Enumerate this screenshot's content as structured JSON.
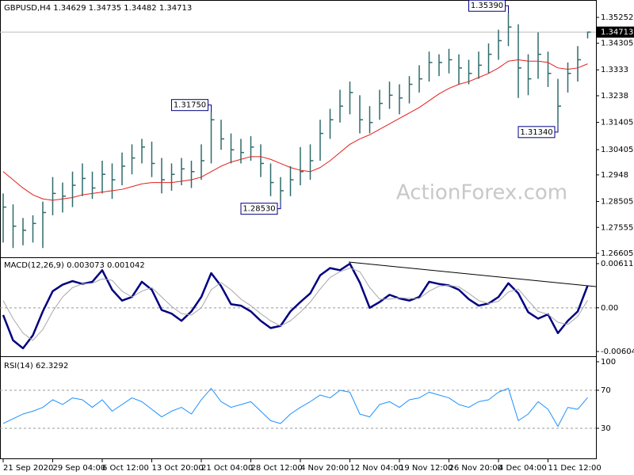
{
  "chart_data": [
    {
      "type": "ohlc",
      "title": "GBPUSD,H4 1.34629 1.34735 1.34482 1.34713",
      "watermark": "ActionForex.com",
      "color": "#2e6b6b",
      "close": [
        1.283,
        1.276,
        1.2745,
        1.277,
        1.281,
        1.288,
        1.287,
        1.291,
        1.2935,
        1.29,
        1.295,
        1.293,
        1.298,
        1.301,
        1.305,
        1.299,
        1.293,
        1.295,
        1.297,
        1.296,
        1.3,
        1.315,
        1.308,
        1.304,
        1.303,
        1.305,
        1.299,
        1.292,
        1.289,
        1.293,
        1.296,
        1.3,
        1.31,
        1.315,
        1.32,
        1.325,
        1.315,
        1.314,
        1.321,
        1.324,
        1.323,
        1.328,
        1.33,
        1.336,
        1.336,
        1.337,
        1.334,
        1.332,
        1.335,
        1.339,
        1.344,
        1.349,
        1.334,
        1.33,
        1.339,
        1.332,
        1.32,
        1.332,
        1.337,
        1.34713
      ],
      "high": [
        1.288,
        1.284,
        1.279,
        1.28,
        1.285,
        1.294,
        1.292,
        1.296,
        1.299,
        1.296,
        1.3,
        1.299,
        1.303,
        1.306,
        1.308,
        1.307,
        1.301,
        1.299,
        1.301,
        1.3,
        1.306,
        1.3175,
        1.315,
        1.31,
        1.308,
        1.309,
        1.306,
        1.299,
        1.294,
        1.298,
        1.305,
        1.306,
        1.315,
        1.319,
        1.326,
        1.329,
        1.324,
        1.32,
        1.326,
        1.329,
        1.328,
        1.331,
        1.335,
        1.34,
        1.339,
        1.341,
        1.339,
        1.337,
        1.34,
        1.343,
        1.348,
        1.3539,
        1.35,
        1.339,
        1.347,
        1.34,
        1.33,
        1.336,
        1.342,
        1.34735
      ],
      "low": [
        1.27,
        1.268,
        1.269,
        1.27,
        1.268,
        1.28,
        1.281,
        1.283,
        1.287,
        1.286,
        1.288,
        1.286,
        1.291,
        1.295,
        1.299,
        1.294,
        1.288,
        1.289,
        1.291,
        1.29,
        1.293,
        1.299,
        1.304,
        1.299,
        1.299,
        1.3,
        1.294,
        1.287,
        1.2853,
        1.287,
        1.291,
        1.293,
        1.3,
        1.308,
        1.314,
        1.317,
        1.31,
        1.31,
        1.315,
        1.319,
        1.317,
        1.321,
        1.325,
        1.329,
        1.331,
        1.332,
        1.328,
        1.328,
        1.33,
        1.332,
        1.337,
        1.342,
        1.323,
        1.324,
        1.33,
        1.327,
        1.3134,
        1.325,
        1.329,
        1.34482
      ],
      "ma": {
        "color": "#e0201c",
        "values": [
          1.296,
          1.293,
          1.29,
          1.2875,
          1.286,
          1.2855,
          1.286,
          1.2865,
          1.2875,
          1.288,
          1.2885,
          1.289,
          1.2895,
          1.2905,
          1.2915,
          1.292,
          1.292,
          1.292,
          1.2925,
          1.293,
          1.294,
          1.296,
          1.298,
          1.2995,
          1.3005,
          1.3015,
          1.3015,
          1.3005,
          1.299,
          1.2975,
          1.2965,
          1.296,
          1.2975,
          1.3,
          1.303,
          1.306,
          1.308,
          1.3095,
          1.3115,
          1.3135,
          1.3155,
          1.3175,
          1.3195,
          1.322,
          1.3245,
          1.3265,
          1.328,
          1.329,
          1.3305,
          1.332,
          1.334,
          1.3365,
          1.337,
          1.3365,
          1.3365,
          1.336,
          1.334,
          1.3335,
          1.334,
          1.3355
        ]
      },
      "annotations": [
        {
          "value": 1.3539,
          "label": "1.35390"
        },
        {
          "value": 1.3175,
          "label": "1.31750"
        },
        {
          "value": 1.2853,
          "label": "1.28530"
        },
        {
          "value": 1.3134,
          "label": "1.31340"
        }
      ],
      "last_price": {
        "value": 1.34713,
        "label": "1.34713"
      },
      "ylim": [
        1.2646,
        1.3589
      ],
      "yticks": [
        1.35252,
        1.34305,
        1.3333,
        1.3238,
        1.31405,
        1.30405,
        1.2948,
        1.28505,
        1.27555,
        1.26605
      ]
    },
    {
      "type": "line",
      "title": "MACD(12,26,9) 0.003073 0.001042",
      "series": [
        {
          "color": "#000080",
          "values": [
            -0.001,
            -0.0045,
            -0.0056,
            -0.0038,
            -0.0005,
            0.0023,
            0.0032,
            0.0037,
            0.0033,
            0.0036,
            0.0052,
            0.0025,
            0.001,
            0.0015,
            0.0036,
            0.0025,
            -0.0003,
            -0.0008,
            -0.0018,
            -0.0005,
            0.0015,
            0.0048,
            0.003,
            0.0005,
            0.0003,
            -0.0005,
            -0.0018,
            -0.0028,
            -0.0025,
            -0.0005,
            0.0008,
            0.002,
            0.0045,
            0.0055,
            0.0052,
            0.0061,
            0.0035,
            0,
            0.0008,
            0.0018,
            0.0013,
            0.001,
            0.0015,
            0.0036,
            0.0033,
            0.0031,
            0.0025,
            0.0012,
            0.0003,
            0.0006,
            0.0015,
            0.0034,
            0.002,
            -0.0006,
            -0.0015,
            -0.0009,
            -0.0035,
            -0.0018,
            -0.0005,
            0.003073
          ]
        },
        {
          "color": "#a8a8a8",
          "values": [
            0.001,
            -0.0015,
            -0.0035,
            -0.0045,
            -0.003,
            -0.0005,
            0.0015,
            0.0028,
            0.0033,
            0.0034,
            0.004,
            0.0038,
            0.0023,
            0.0015,
            0.0023,
            0.0028,
            0.0015,
            0.0002,
            -0.0008,
            -0.001,
            0,
            0.0025,
            0.0035,
            0.0025,
            0.0012,
            0.0003,
            -0.0008,
            -0.0018,
            -0.0025,
            -0.0018,
            -0.0006,
            0.0008,
            0.0026,
            0.0042,
            0.005,
            0.0055,
            0.005,
            0.0028,
            0.0012,
            0.0012,
            0.0014,
            0.0013,
            0.0013,
            0.0023,
            0.003,
            0.0031,
            0.0029,
            0.002,
            0.001,
            0.0006,
            0.0009,
            0.0022,
            0.0026,
            0.001,
            -0.0005,
            -0.0009,
            -0.002,
            -0.0023,
            -0.0012,
            0.001042
          ]
        }
      ],
      "levels": [
        0
      ],
      "ylim": [
        -0.0067,
        0.00666
      ],
      "yticks": [
        0.006116,
        {
          "value": 0,
          "label": "0.00"
        },
        -0.00604
      ]
    },
    {
      "type": "line",
      "title": "RSI(14) 62.3292",
      "series": [
        {
          "color": "#1e90ff",
          "values": [
            35,
            40,
            45,
            48,
            52,
            60,
            55,
            62,
            60,
            52,
            60,
            48,
            55,
            62,
            58,
            50,
            42,
            48,
            52,
            45,
            60,
            72,
            58,
            52,
            55,
            58,
            48,
            38,
            35,
            45,
            52,
            58,
            65,
            62,
            70,
            68,
            45,
            42,
            55,
            58,
            52,
            60,
            62,
            68,
            65,
            62,
            55,
            52,
            58,
            60,
            68,
            72,
            38,
            45,
            58,
            50,
            32,
            52,
            50,
            62.3292
          ]
        }
      ],
      "levels": [
        30,
        70
      ],
      "ylim": [
        -2.5,
        103.3
      ],
      "yticks": [
        100,
        70,
        30
      ],
      "categories": [
        "21 Sep 2020",
        null,
        null,
        null,
        null,
        "29 Sep 04:00",
        null,
        null,
        null,
        null,
        "6 Oct 12:00",
        null,
        null,
        null,
        null,
        "13 Oct 20:00",
        null,
        null,
        null,
        null,
        "21 Oct 04:00",
        null,
        null,
        null,
        null,
        "28 Oct 12:00",
        null,
        null,
        null,
        null,
        "4 Nov 20:00",
        null,
        null,
        null,
        null,
        "12 Nov 04:00",
        null,
        null,
        null,
        null,
        "19 Nov 12:00",
        null,
        null,
        null,
        null,
        "26 Nov 20:00",
        null,
        null,
        null,
        null,
        "4 Dec 04:00",
        null,
        null,
        null,
        null,
        "11 Dec 12:00",
        null,
        null,
        null,
        null
      ]
    }
  ]
}
